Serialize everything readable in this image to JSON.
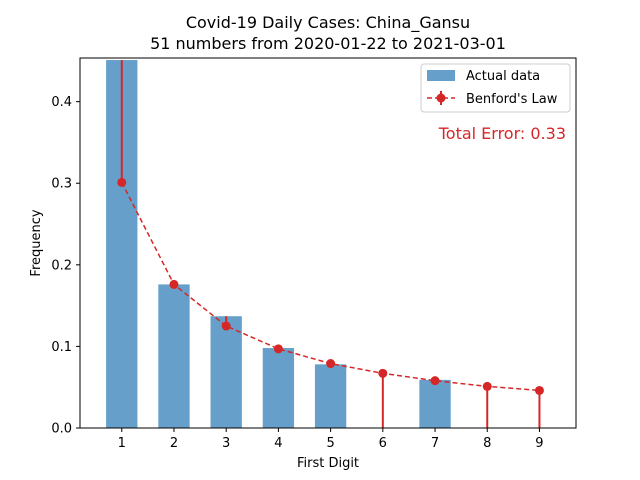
{
  "chart_data": {
    "type": "bar",
    "title_line1": "Covid-19 Daily Cases: China_Gansu",
    "title_line2": "51 numbers from 2020-01-22 to 2021-03-01",
    "xlabel": "First Digit",
    "ylabel": "Frequency",
    "categories": [
      "1",
      "2",
      "3",
      "4",
      "5",
      "6",
      "7",
      "8",
      "9"
    ],
    "x": [
      1,
      2,
      3,
      4,
      5,
      6,
      7,
      8,
      9
    ],
    "series": [
      {
        "name": "Actual data",
        "kind": "bar",
        "color": "#669fc9",
        "values": [
          0.451,
          0.176,
          0.137,
          0.098,
          0.078,
          0.0,
          0.059,
          0.0,
          0.0
        ]
      },
      {
        "name": "Benford's Law",
        "kind": "line-errorbar",
        "color": "#d62728",
        "values": [
          0.301,
          0.176,
          0.125,
          0.097,
          0.079,
          0.067,
          0.058,
          0.051,
          0.046
        ]
      }
    ],
    "xlim": [
      0.2,
      9.7
    ],
    "ylim": [
      0,
      0.4535
    ],
    "yticks": [
      0.0,
      0.1,
      0.2,
      0.3,
      0.4
    ],
    "ytick_labels": [
      "0.0",
      "0.1",
      "0.2",
      "0.3",
      "0.4"
    ],
    "legend_position": "top-right",
    "annotation": "Total Error: 0.33",
    "annotation_color": "#d62728"
  }
}
